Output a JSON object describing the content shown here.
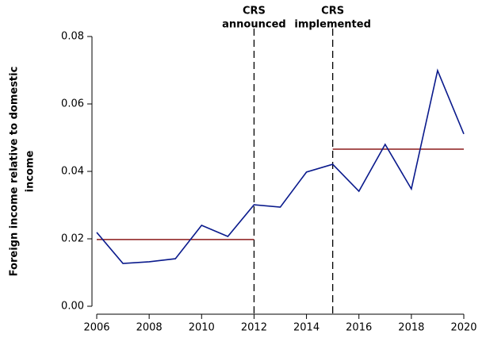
{
  "chart_data": {
    "type": "line",
    "ylabel": [
      "Foreign income relative to domestic",
      "income"
    ],
    "x": [
      2006,
      2007,
      2008,
      2009,
      2010,
      2011,
      2012,
      2013,
      2014,
      2015,
      2016,
      2017,
      2018,
      2019,
      2020
    ],
    "series": [
      {
        "color": "#0a1a8c",
        "values": [
          0.0219,
          0.0127,
          0.0132,
          0.0141,
          0.024,
          0.0207,
          0.0301,
          0.0294,
          0.0398,
          0.0421,
          0.0341,
          0.048,
          0.0348,
          0.0699,
          0.0511
        ]
      }
    ],
    "reference_lines": [
      {
        "x": [
          2006,
          2012
        ],
        "value": 0.0198,
        "color": "#8b1a1a"
      },
      {
        "x": [
          2015,
          2020
        ],
        "value": 0.0466,
        "color": "#8b1a1a"
      }
    ],
    "vlines": [
      {
        "x": 2012,
        "label": [
          "CRS",
          "announced"
        ]
      },
      {
        "x": 2015,
        "label": [
          "CRS",
          "implemented"
        ]
      }
    ],
    "xlim": [
      2006,
      2020
    ],
    "xticks": [
      2006,
      2008,
      2010,
      2012,
      2014,
      2016,
      2018,
      2020
    ],
    "ylim": [
      0,
      0.08
    ],
    "yticks": [
      {
        "value": 0,
        "label": "0.00"
      },
      {
        "value": 0.02,
        "label": "0.02"
      },
      {
        "value": 0.04,
        "label": "0.04"
      },
      {
        "value": 0.06,
        "label": "0.06"
      },
      {
        "value": 0.08,
        "label": "0.08"
      }
    ]
  }
}
